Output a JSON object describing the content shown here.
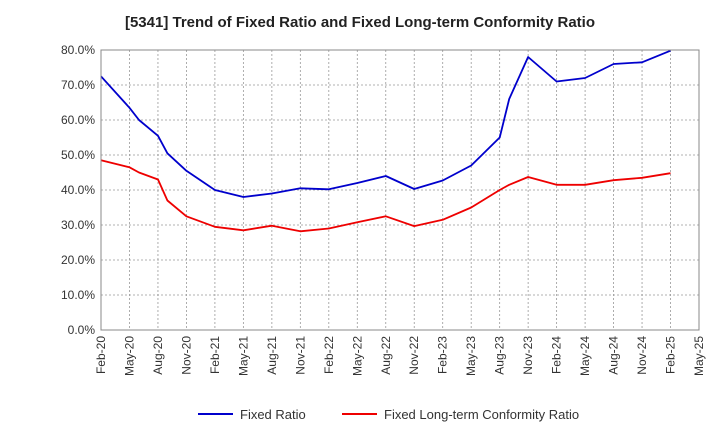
{
  "chart_data": {
    "type": "line",
    "title": "[5341]  Trend of Fixed Ratio and Fixed Long-term Conformity Ratio",
    "xlabel": "",
    "ylabel": "",
    "y_unit": "%",
    "ylim": [
      0,
      80
    ],
    "y_ticks": [
      "0.0%",
      "10.0%",
      "20.0%",
      "30.0%",
      "40.0%",
      "50.0%",
      "60.0%",
      "70.0%",
      "80.0%"
    ],
    "x_ticks": [
      "Feb-20",
      "May-20",
      "Aug-20",
      "Nov-20",
      "Feb-21",
      "May-21",
      "Aug-21",
      "Nov-21",
      "Feb-22",
      "May-22",
      "Aug-22",
      "Nov-22",
      "Feb-23",
      "May-23",
      "Aug-23",
      "Nov-23",
      "Feb-24",
      "May-24",
      "Aug-24",
      "Nov-24",
      "Feb-25",
      "May-25"
    ],
    "grid": true,
    "legend_position": "bottom",
    "x": [
      "Feb-20",
      "May-20",
      "Jun-20",
      "Aug-20",
      "Sep-20",
      "Nov-20",
      "Feb-21",
      "May-21",
      "Aug-21",
      "Nov-21",
      "Feb-22",
      "May-22",
      "Aug-22",
      "Nov-22",
      "Feb-23",
      "May-23",
      "Aug-23",
      "Sep-23",
      "Nov-23",
      "Feb-24",
      "May-24",
      "Aug-24",
      "Nov-24",
      "Feb-25"
    ],
    "series": [
      {
        "name": "Fixed Ratio",
        "color": "#0000cc",
        "values": [
          72.5,
          63.5,
          60.0,
          55.5,
          50.5,
          45.5,
          40.0,
          38.0,
          39.0,
          40.5,
          40.2,
          42.0,
          44.0,
          40.3,
          42.7,
          47.0,
          55.0,
          66.0,
          78.0,
          71.0,
          72.0,
          76.0,
          76.5,
          79.8
        ]
      },
      {
        "name": "Fixed Long-term Conformity Ratio",
        "color": "#ee0000",
        "values": [
          48.5,
          46.5,
          45.0,
          43.0,
          37.0,
          32.5,
          29.5,
          28.5,
          29.8,
          28.2,
          29.0,
          30.8,
          32.5,
          29.7,
          31.5,
          35.0,
          40.0,
          41.5,
          43.7,
          41.5,
          41.5,
          42.8,
          43.5,
          44.8
        ]
      }
    ]
  }
}
